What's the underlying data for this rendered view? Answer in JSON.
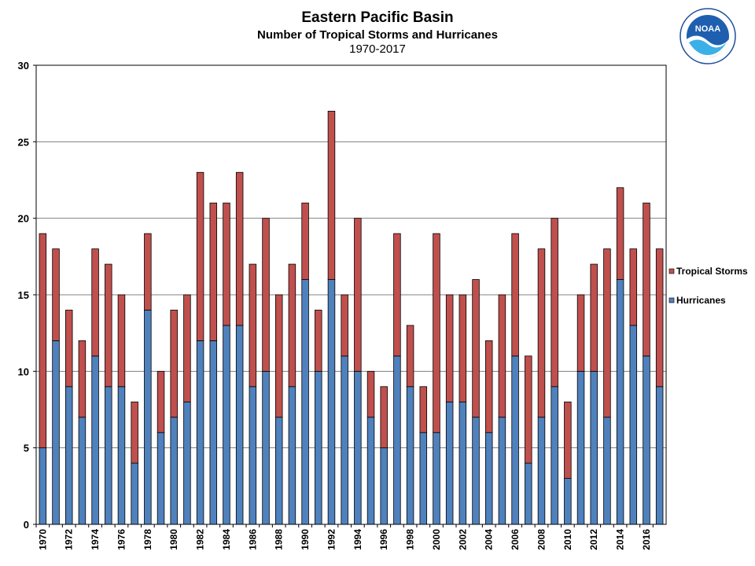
{
  "header": {
    "title": "Eastern Pacific Basin",
    "subtitle": "Number of Tropical Storms and Hurricanes",
    "years": "1970-2017"
  },
  "logo": {
    "label": "NOAA"
  },
  "chart_data": {
    "type": "bar",
    "stacked": true,
    "title": "Eastern Pacific Basin",
    "subtitle": "Number of Tropical Storms and Hurricanes",
    "x": [
      1970,
      1971,
      1972,
      1973,
      1974,
      1975,
      1976,
      1977,
      1978,
      1979,
      1980,
      1981,
      1982,
      1983,
      1984,
      1985,
      1986,
      1987,
      1988,
      1989,
      1990,
      1991,
      1992,
      1993,
      1994,
      1995,
      1996,
      1997,
      1998,
      1999,
      2000,
      2001,
      2002,
      2003,
      2004,
      2005,
      2006,
      2007,
      2008,
      2009,
      2010,
      2011,
      2012,
      2013,
      2014,
      2015,
      2016,
      2017
    ],
    "series": [
      {
        "name": "Hurricanes",
        "color": "#4F81BD",
        "values": [
          5,
          12,
          9,
          7,
          11,
          9,
          9,
          4,
          14,
          6,
          7,
          8,
          12,
          12,
          13,
          13,
          9,
          10,
          7,
          9,
          16,
          10,
          16,
          11,
          10,
          7,
          5,
          11,
          9,
          6,
          6,
          8,
          8,
          7,
          6,
          7,
          11,
          4,
          7,
          9,
          3,
          10,
          10,
          7,
          16,
          13,
          11,
          9
        ]
      },
      {
        "name": "Tropical Storms",
        "color": "#C0504D",
        "values": [
          14,
          6,
          5,
          5,
          7,
          8,
          6,
          4,
          5,
          4,
          7,
          7,
          11,
          9,
          8,
          10,
          8,
          10,
          8,
          8,
          5,
          4,
          11,
          4,
          10,
          3,
          4,
          8,
          4,
          3,
          13,
          7,
          7,
          9,
          6,
          8,
          8,
          7,
          11,
          11,
          5,
          5,
          7,
          11,
          6,
          5,
          10,
          9
        ]
      }
    ],
    "legend": [
      "Tropical Storms",
      "Hurricanes"
    ],
    "legend_position": "right",
    "ylim": [
      0,
      30
    ],
    "yticks": [
      0,
      5,
      10,
      15,
      20,
      25,
      30
    ],
    "xtick_labels": [
      "1970",
      "1972",
      "1974",
      "1976",
      "1978",
      "1980",
      "1982",
      "1984",
      "1986",
      "1988",
      "1990",
      "1992",
      "1994",
      "1996",
      "1998",
      "2000",
      "2002",
      "2004",
      "2006",
      "2008",
      "2010",
      "2012",
      "2014",
      "2016"
    ],
    "grid": true,
    "xlabel": "",
    "ylabel": ""
  }
}
